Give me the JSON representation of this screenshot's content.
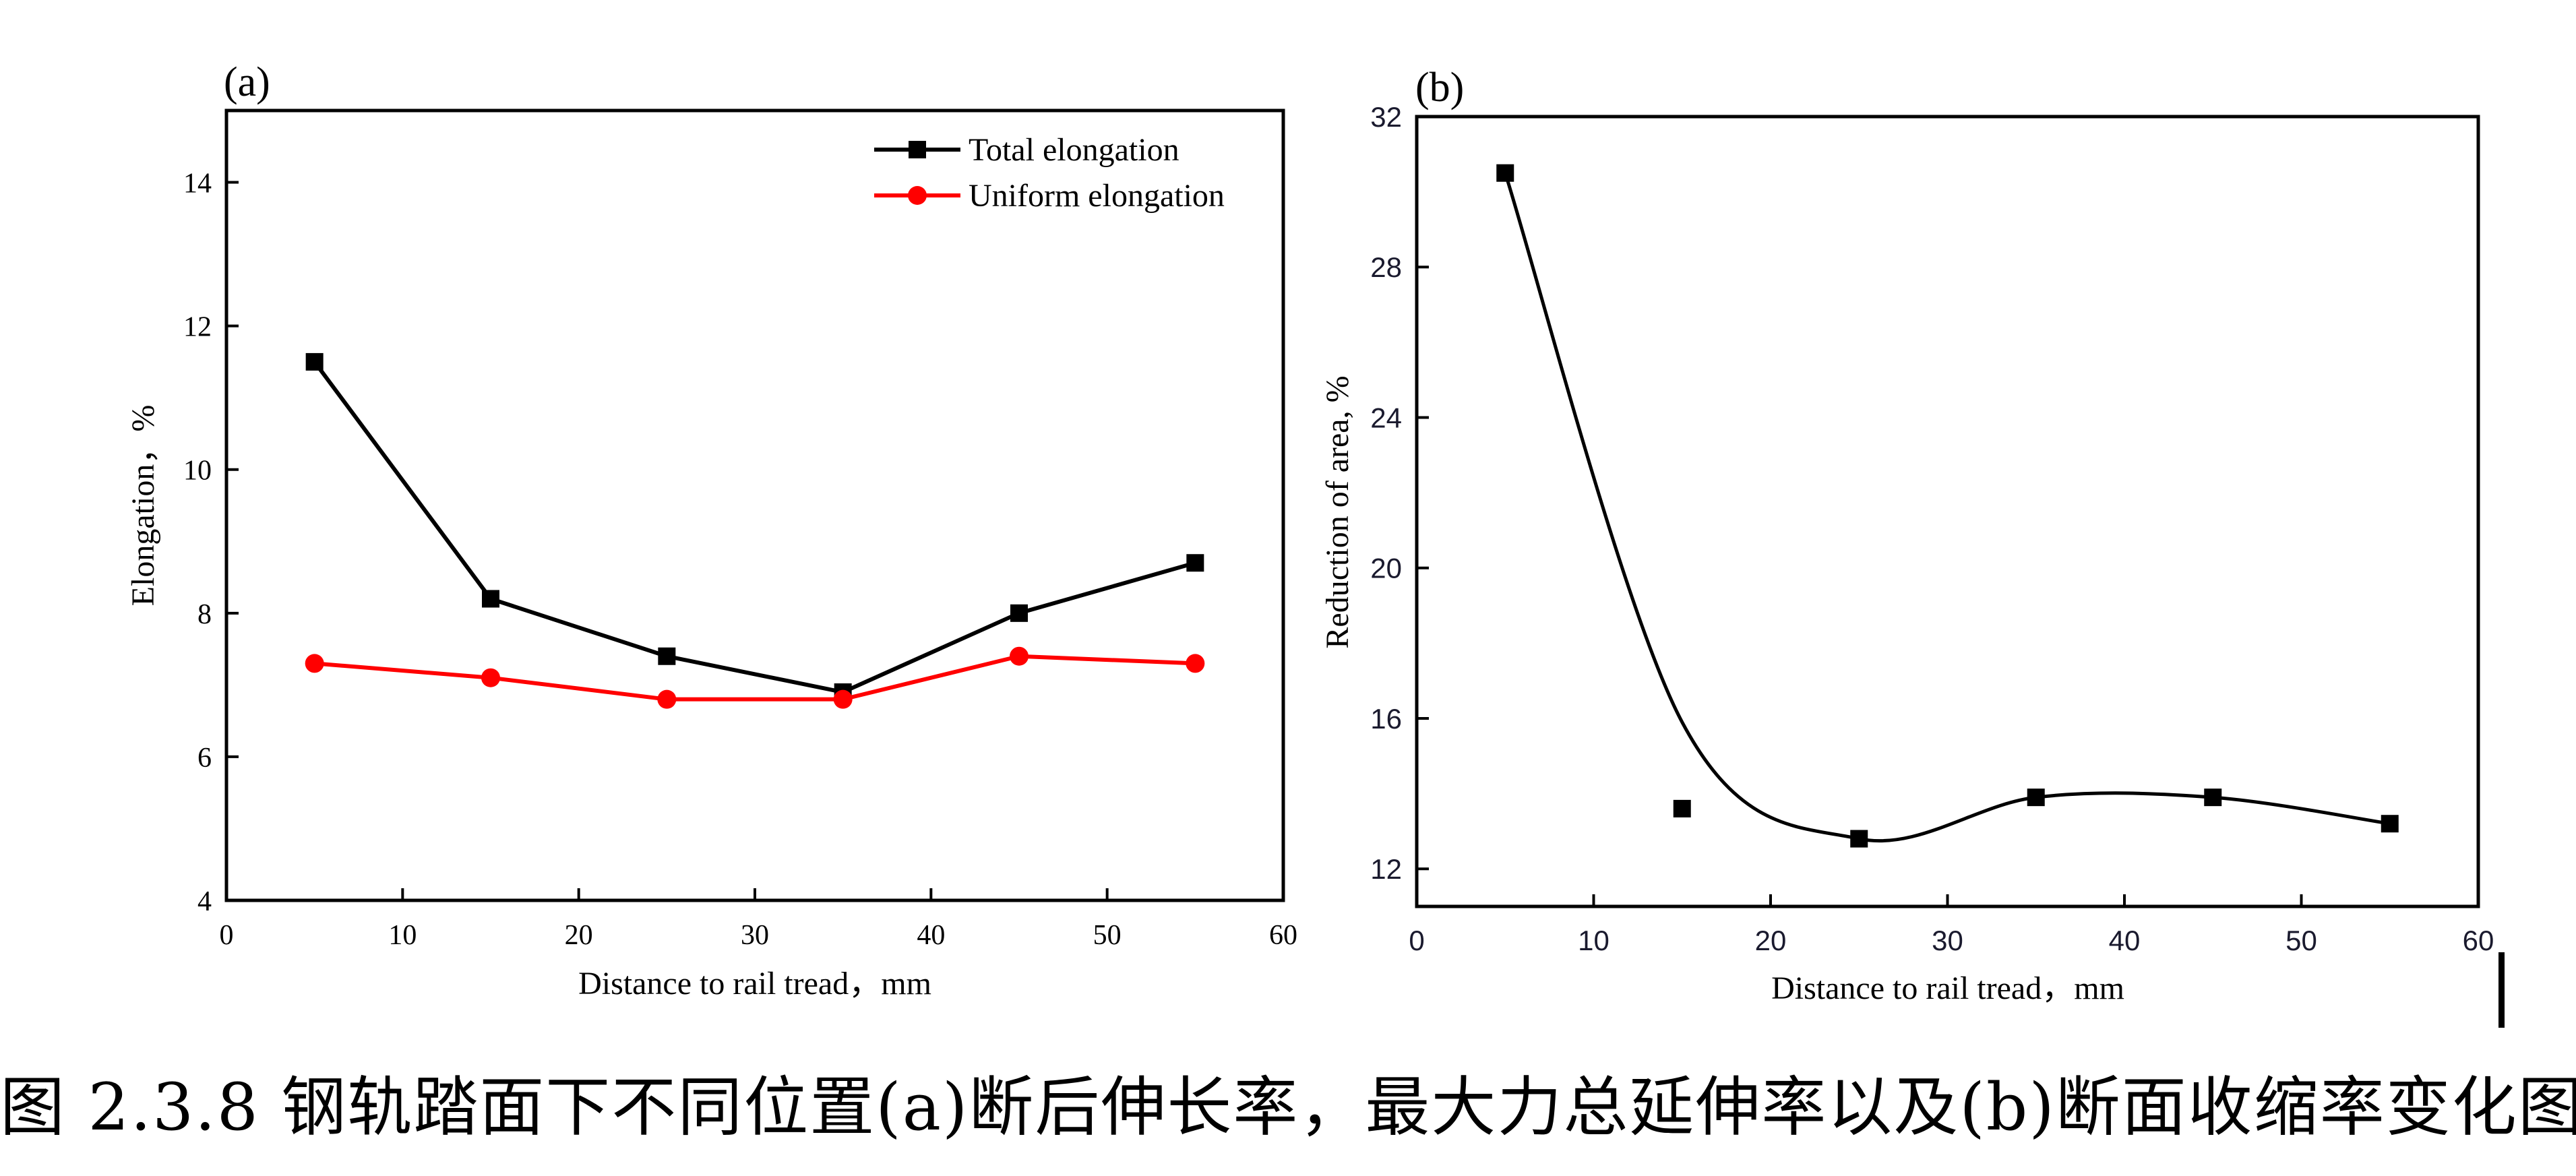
{
  "figure": {
    "caption": "图 2.3.8 钢轨踏面下不同位置(a)断后伸长率，最大力总延伸率以及(b)断面收缩率变化图"
  },
  "chart_data": [
    {
      "panel_label": "(a)",
      "type": "line",
      "xlabel": "Distance to rail tread，mm",
      "ylabel": "Elongation，%",
      "xlim": [
        0,
        60
      ],
      "ylim": [
        4,
        15
      ],
      "xticks": [
        0,
        10,
        20,
        30,
        40,
        50,
        60
      ],
      "yticks": [
        4,
        6,
        8,
        10,
        12,
        14
      ],
      "grid": false,
      "legend_position": "top-right",
      "x": [
        5,
        15,
        25,
        35,
        45,
        55
      ],
      "series": [
        {
          "name": "Total elongation",
          "color": "#000000",
          "marker": "square",
          "values": [
            11.5,
            8.2,
            7.4,
            6.9,
            8.0,
            8.7
          ]
        },
        {
          "name": "Uniform elongation",
          "color": "#ff0000",
          "marker": "circle",
          "values": [
            7.3,
            7.1,
            6.8,
            6.8,
            7.4,
            7.3
          ]
        }
      ]
    },
    {
      "panel_label": "(b)",
      "type": "scatter",
      "xlabel": "Distance to rail tread，mm",
      "ylabel": "Reduction of area, %",
      "xlim": [
        0,
        60
      ],
      "ylim": [
        11,
        32
      ],
      "xticks": [
        0,
        10,
        20,
        30,
        40,
        50,
        60
      ],
      "yticks": [
        12,
        16,
        20,
        24,
        28,
        32
      ],
      "grid": false,
      "x": [
        5,
        15,
        25,
        35,
        45,
        55
      ],
      "series": [
        {
          "name": "Reduction of area",
          "color": "#000000",
          "marker": "square",
          "values": [
            30.5,
            13.6,
            12.8,
            13.9,
            13.9,
            13.2
          ],
          "fit": "smooth-spline"
        }
      ]
    }
  ]
}
